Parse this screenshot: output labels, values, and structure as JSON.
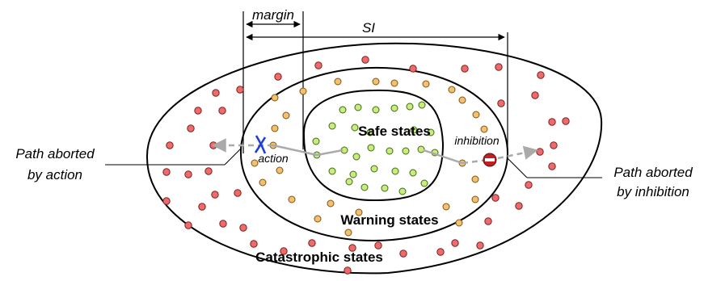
{
  "labels": {
    "safe": "Safe states",
    "warning": "Warning states",
    "catastrophic": "Catastrophic states",
    "margin": "margin",
    "si": "SI",
    "action": "action",
    "inhibition": "inhibition",
    "path_action_line1": "Path aborted",
    "path_action_line2": "by action",
    "path_inhibition_line1": "Path aborted",
    "path_inhibition_line2": "by inhibition"
  },
  "colors": {
    "catastrophic_dot": "#ef6b6b",
    "warning_dot": "#f3c070",
    "safe_dot": "#c9ec7e",
    "path_arrow": "#aaaaaa",
    "action_mark": "#1f3fd6",
    "inhibition_mark": "#c0201f"
  },
  "icons": {
    "action": "blue-x-cross-icon",
    "inhibition": "no-entry-icon"
  }
}
